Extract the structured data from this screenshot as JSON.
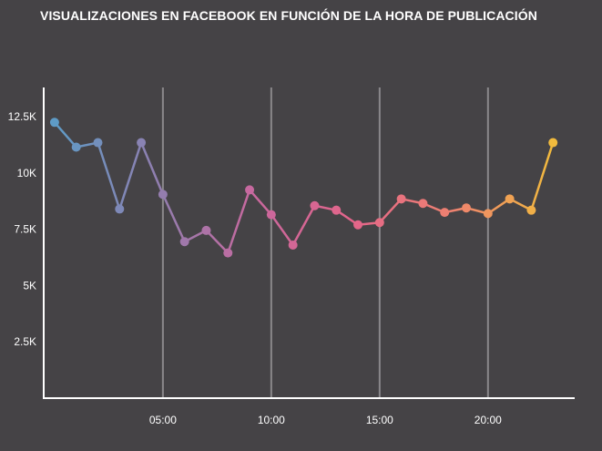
{
  "chart_data": {
    "type": "line",
    "title": "VISUALIZACIONES EN FACEBOOK EN FUNCIÓN DE LA HORA DE PUBLICACIÓN",
    "xlabel": "",
    "ylabel": "",
    "x": [
      0,
      1,
      2,
      3,
      4,
      5,
      6,
      7,
      8,
      9,
      10,
      11,
      12,
      13,
      14,
      15,
      16,
      17,
      18,
      19,
      20,
      21,
      22,
      23
    ],
    "values": [
      12250,
      11150,
      11350,
      8400,
      11350,
      9050,
      6950,
      7450,
      6450,
      9250,
      8150,
      6800,
      8550,
      8350,
      7700,
      7800,
      8850,
      8650,
      8250,
      8450,
      8200,
      8850,
      8350,
      11350
    ],
    "xlim": [
      -0.5,
      24
    ],
    "ylim": [
      0,
      13800
    ],
    "x_ticks": [
      {
        "value": 5,
        "label": "05:00"
      },
      {
        "value": 10,
        "label": "10:00"
      },
      {
        "value": 15,
        "label": "15:00"
      },
      {
        "value": 20,
        "label": "20:00"
      }
    ],
    "y_ticks": [
      {
        "value": 2500,
        "label": "2.5K"
      },
      {
        "value": 5000,
        "label": "5K"
      },
      {
        "value": 7500,
        "label": "7.5K"
      },
      {
        "value": 10000,
        "label": "10K"
      },
      {
        "value": 12500,
        "label": "12.5K"
      }
    ],
    "grid": "vertical lines at x ticks",
    "colors": {
      "background": "#454346",
      "axis": "#ffffff",
      "grid": "#8a888b",
      "gradient": [
        "#5e9bc6",
        "#8f7fb0",
        "#c8689e",
        "#e3658a",
        "#ee8270",
        "#f2bb3d"
      ]
    }
  }
}
